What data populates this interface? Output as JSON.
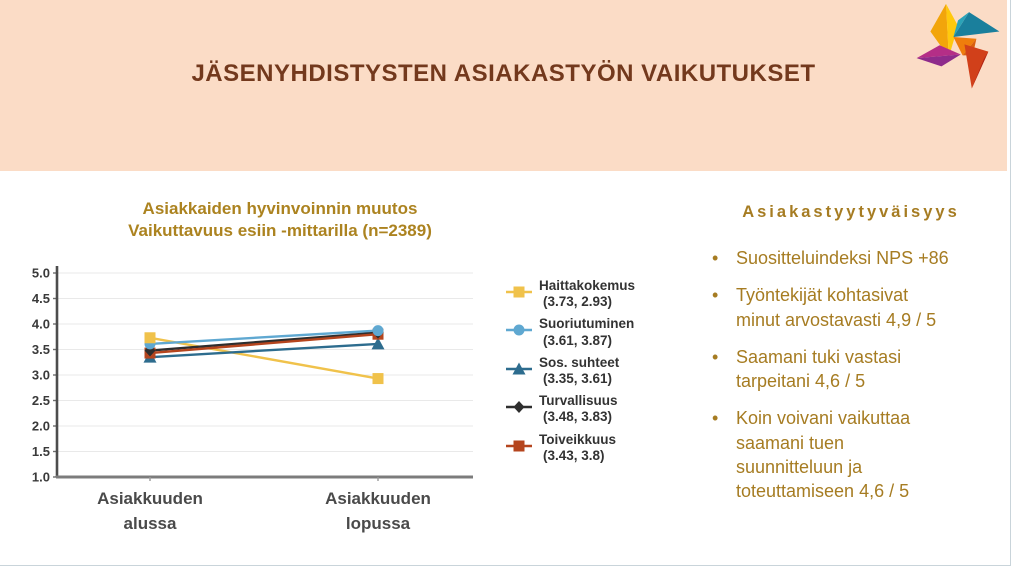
{
  "header": {
    "title": "JÄSENYHDISTYSTEN ASIAKASTYÖN VAIKUTUKSET"
  },
  "logo": {
    "name": "pinwheel-logo",
    "colors": {
      "gold": "#F2A50B",
      "yellow": "#FFC90D",
      "teal": "#1A7F9C",
      "teal_light": "#2BA3B8",
      "orange": "#EF7D0C",
      "orange_deep": "#D95F0E",
      "red": "#D1401A",
      "red_dark": "#B02517",
      "magenta": "#B42E87",
      "purple": "#8E2B8B"
    }
  },
  "chart_data": {
    "type": "line",
    "title_lines": [
      "Asiakkaiden hyvinvoinnin muutos",
      "Vaikuttavuus esiin -mittarilla (n=2389)"
    ],
    "sample_size": 2389,
    "categories": [
      {
        "label": "Asiakkuuden alussa",
        "lines": [
          "Asiakkuuden",
          "alussa"
        ]
      },
      {
        "label": "Asiakkuuden lopussa",
        "lines": [
          "Asiakkuuden",
          "lopussa"
        ]
      }
    ],
    "ylim": [
      1.0,
      5.0
    ],
    "ytick_step": 0.5,
    "ytick_labels": [
      "1.0",
      "1.5",
      "2.0",
      "2.5",
      "3.0",
      "3.5",
      "4.0",
      "4.5",
      "5.0"
    ],
    "grid": true,
    "legend_position": "right",
    "series": [
      {
        "name": "Haittakokemus",
        "values": [
          3.73,
          2.93
        ],
        "value_label": "(3.73, 2.93)",
        "color": "#F0C24B",
        "marker": "square"
      },
      {
        "name": "Suoriutuminen",
        "values": [
          3.61,
          3.87
        ],
        "value_label": "(3.61, 3.87)",
        "color": "#5FA8D1",
        "marker": "circle"
      },
      {
        "name": "Sos. suhteet",
        "values": [
          3.35,
          3.61
        ],
        "value_label": "(3.35, 3.61)",
        "color": "#2D6C8E",
        "marker": "triangle"
      },
      {
        "name": "Turvallisuus",
        "values": [
          3.48,
          3.83
        ],
        "value_label": "(3.48, 3.83)",
        "color": "#2E2E2E",
        "marker": "diamond"
      },
      {
        "name": "Toiveikkuus",
        "values": [
          3.43,
          3.8
        ],
        "value_label": "(3.43, 3.8)",
        "color": "#B5451E",
        "marker": "square"
      }
    ]
  },
  "right_panel": {
    "title": "Asiakastyytyväisyys",
    "bullets": [
      {
        "lines": [
          "Suositteluindeksi NPS +86"
        ]
      },
      {
        "lines": [
          "Työntekijät kohtasivat",
          "minut arvostavasti 4,9 / 5"
        ]
      },
      {
        "lines": [
          "Saamani tuki vastasi",
          "tarpeitani 4,6 / 5"
        ]
      },
      {
        "lines": [
          "Koin voivani vaikuttaa",
          "saamani tuen",
          "suunnitteluun ja",
          "toteuttamiseen 4,6 / 5"
        ]
      }
    ]
  }
}
